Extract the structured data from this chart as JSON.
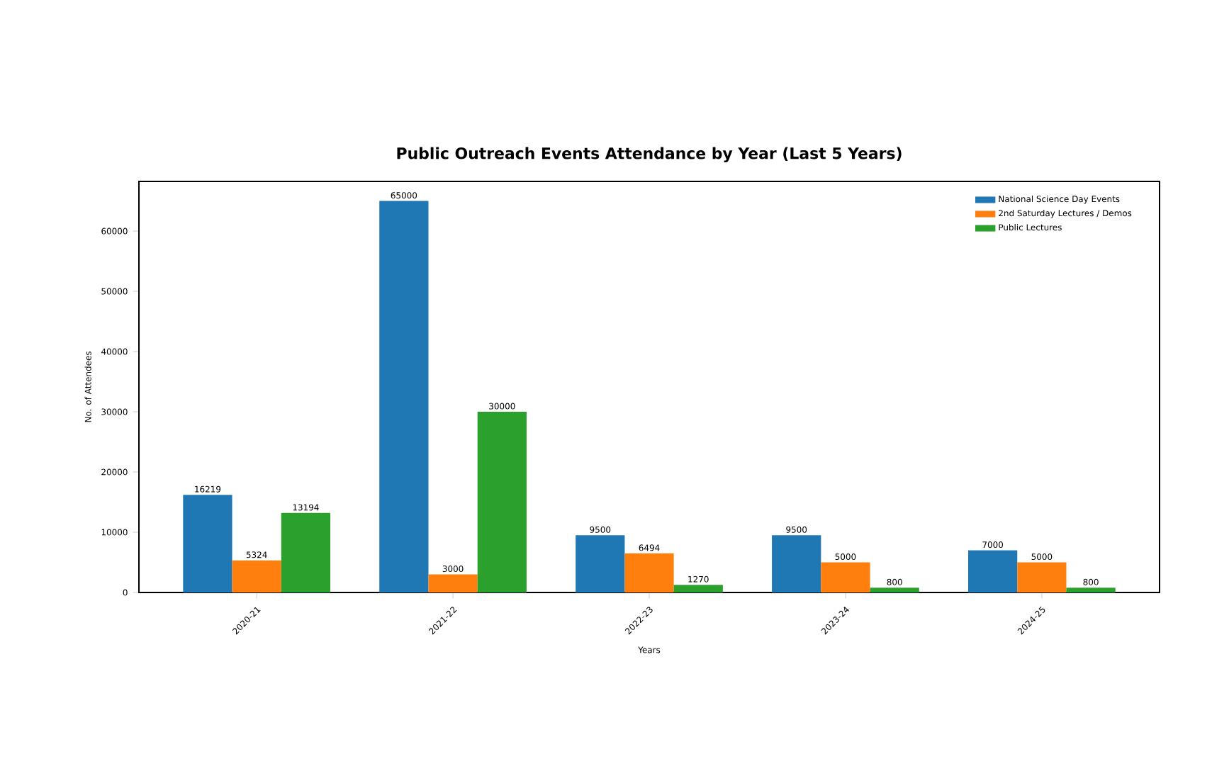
{
  "chart_data": {
    "type": "bar",
    "title": "Public Outreach Events Attendance by Year (Last 5 Years)",
    "xlabel": "Years",
    "ylabel": "No. of Attendees",
    "categories": [
      "2020-21",
      "2021-22",
      "2022-23",
      "2023-24",
      "2024-25"
    ],
    "series": [
      {
        "name": "National Science Day Events",
        "color": "#1f77b4",
        "values": [
          16219,
          65000,
          9500,
          9500,
          7000
        ]
      },
      {
        "name": "2nd Saturday Lectures / Demos",
        "color": "#ff7f0e",
        "values": [
          5324,
          3000,
          6494,
          5000,
          5000
        ]
      },
      {
        "name": "Public Lectures",
        "color": "#2ca02c",
        "values": [
          13194,
          30000,
          1270,
          800,
          800
        ]
      }
    ],
    "data_labels": true,
    "ylim": [
      0,
      68250
    ],
    "yticks": [
      0,
      10000,
      20000,
      30000,
      40000,
      50000,
      60000
    ],
    "legend": "top right"
  }
}
